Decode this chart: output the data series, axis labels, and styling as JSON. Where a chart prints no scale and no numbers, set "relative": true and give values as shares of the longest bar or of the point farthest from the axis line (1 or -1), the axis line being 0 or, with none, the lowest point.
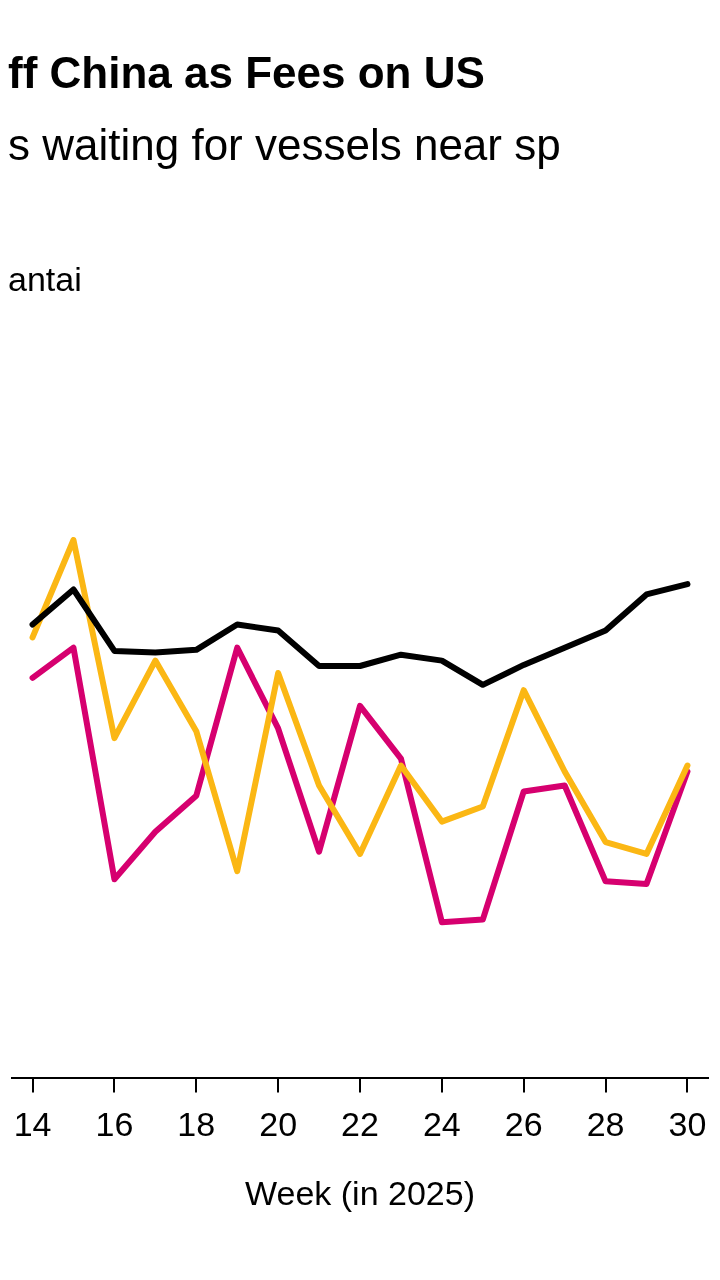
{
  "chart_data": {
    "type": "line",
    "title": "ff China as Fees on US",
    "subtitle": "s waiting for vessels near sp",
    "annotations": [
      "antai"
    ],
    "xlabel": "Week (in 2025)",
    "relative": true,
    "x": [
      14,
      15,
      16,
      17,
      18,
      19,
      20,
      21,
      22,
      23,
      24,
      25,
      26,
      27,
      28,
      29,
      30
    ],
    "xlim": [
      13.5,
      30.5
    ],
    "xticks": [
      14,
      16,
      18,
      20,
      22,
      24,
      26,
      28,
      30
    ],
    "legend": false,
    "marker": "none",
    "line_style": "solid",
    "series": [
      {
        "color": "#000000",
        "values": [
          0.843,
          0.908,
          0.794,
          0.791,
          0.796,
          0.843,
          0.832,
          0.766,
          0.766,
          0.787,
          0.776,
          0.731,
          0.768,
          0.8,
          0.832,
          0.899,
          0.918
        ]
      },
      {
        "color": "#fbb714",
        "values": [
          0.819,
          1,
          0.632,
          0.776,
          0.645,
          0.385,
          0.753,
          0.544,
          0.417,
          0.581,
          0.477,
          0.505,
          0.721,
          0.57,
          0.439,
          0.417,
          0.581
        ]
      },
      {
        "color": "#d6006f",
        "values": [
          0.744,
          0.8,
          0.37,
          0.458,
          0.525,
          0.8,
          0.65,
          0.421,
          0.692,
          0.594,
          0.29,
          0.295,
          0.533,
          0.544,
          0.366,
          0.361,
          0.57
        ]
      }
    ]
  }
}
